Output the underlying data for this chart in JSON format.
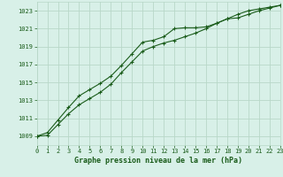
{
  "title": "Graphe pression niveau de la mer (hPa)",
  "background_color": "#d8f0e8",
  "plot_bg_color": "#d8f0e8",
  "grid_color": "#b8d8c8",
  "line_color": "#1a5c1a",
  "x_values": [
    0,
    1,
    2,
    3,
    4,
    5,
    6,
    7,
    8,
    9,
    10,
    11,
    12,
    13,
    14,
    15,
    16,
    17,
    18,
    19,
    20,
    21,
    22,
    23
  ],
  "line1_y": [
    1009.0,
    1009.4,
    1010.8,
    1012.2,
    1013.5,
    1014.2,
    1014.9,
    1015.7,
    1016.9,
    1018.2,
    1019.5,
    1019.7,
    1020.1,
    1021.0,
    1021.1,
    1021.1,
    1021.2,
    1021.6,
    1022.1,
    1022.2,
    1022.6,
    1023.0,
    1023.3,
    1023.6
  ],
  "line2_y": [
    1009.0,
    1009.1,
    1010.3,
    1011.5,
    1012.5,
    1013.2,
    1013.9,
    1014.8,
    1016.1,
    1017.3,
    1018.5,
    1019.0,
    1019.4,
    1019.7,
    1020.1,
    1020.5,
    1021.0,
    1021.6,
    1022.1,
    1022.6,
    1023.0,
    1023.2,
    1023.4,
    1023.6
  ],
  "ylim": [
    1008,
    1024
  ],
  "xlim": [
    0,
    23
  ],
  "yticks": [
    1009,
    1011,
    1013,
    1015,
    1017,
    1019,
    1021,
    1023
  ],
  "xticks": [
    0,
    1,
    2,
    3,
    4,
    5,
    6,
    7,
    8,
    9,
    10,
    11,
    12,
    13,
    14,
    15,
    16,
    17,
    18,
    19,
    20,
    21,
    22,
    23
  ],
  "tick_fontsize": 5.0,
  "xlabel_fontsize": 6.0,
  "marker": "+"
}
